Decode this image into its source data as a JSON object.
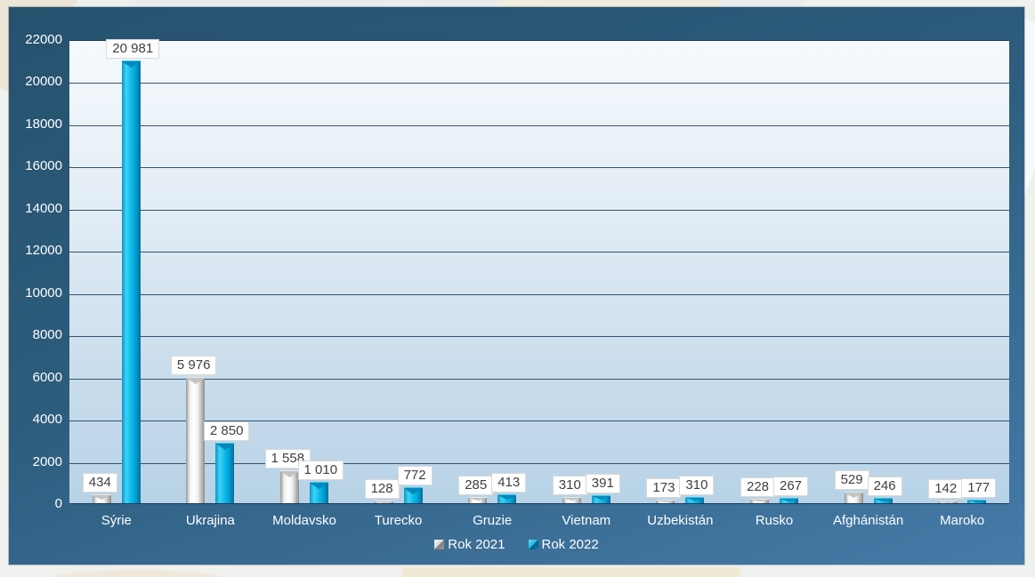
{
  "chart_data": {
    "type": "bar",
    "title": "",
    "xlabel": "",
    "ylabel": "",
    "categories": [
      "Sýrie",
      "Ukrajina",
      "Moldavsko",
      "Turecko",
      "Gruzie",
      "Vietnam",
      "Uzbekistán",
      "Rusko",
      "Afghánistán",
      "Maroko"
    ],
    "series": [
      {
        "name": "Rok 2021",
        "values": [
          434,
          5976,
          1558,
          128,
          285,
          310,
          173,
          228,
          529,
          142
        ],
        "labels": [
          "434",
          "5 976",
          "1 558",
          "128",
          "285",
          "310",
          "173",
          "228",
          "529",
          "142"
        ],
        "color": "#ffffff"
      },
      {
        "name": "Rok 2022",
        "values": [
          20981,
          2850,
          1010,
          772,
          413,
          391,
          310,
          267,
          246,
          177
        ],
        "labels": [
          "20 981",
          "2 850",
          "1 010",
          "772",
          "413",
          "391",
          "310",
          "267",
          "246",
          "177"
        ],
        "color": "#00b0e2"
      }
    ],
    "ylim": [
      0,
      22000
    ],
    "ytick_step": 2000,
    "yticks": [
      "0",
      "2000",
      "4000",
      "6000",
      "8000",
      "10000",
      "12000",
      "14000",
      "16000",
      "18000",
      "20000",
      "22000"
    ],
    "grid": true,
    "legend_position": "bottom",
    "bar_style": "3d-beveled"
  },
  "legend": {
    "items": [
      {
        "label": "Rok 2021",
        "marker": "silver-beveled-square"
      },
      {
        "label": "Rok 2022",
        "marker": "cyan-beveled-square"
      }
    ]
  },
  "colors": {
    "frame_gradient_top": "#26526e",
    "frame_gradient_bottom": "#467ba8",
    "plot_gradient_top": "#f6fafc",
    "plot_gradient_bottom": "#b7d2e6",
    "gridline": "#17395c",
    "axis_text": "#fdfeff",
    "value_label_text": "#3f3f3f",
    "value_label_bg": "#ffffff",
    "series1_main": "#ffffff",
    "series2_main": "#00b0e2",
    "page_background": "#eff1ee"
  }
}
